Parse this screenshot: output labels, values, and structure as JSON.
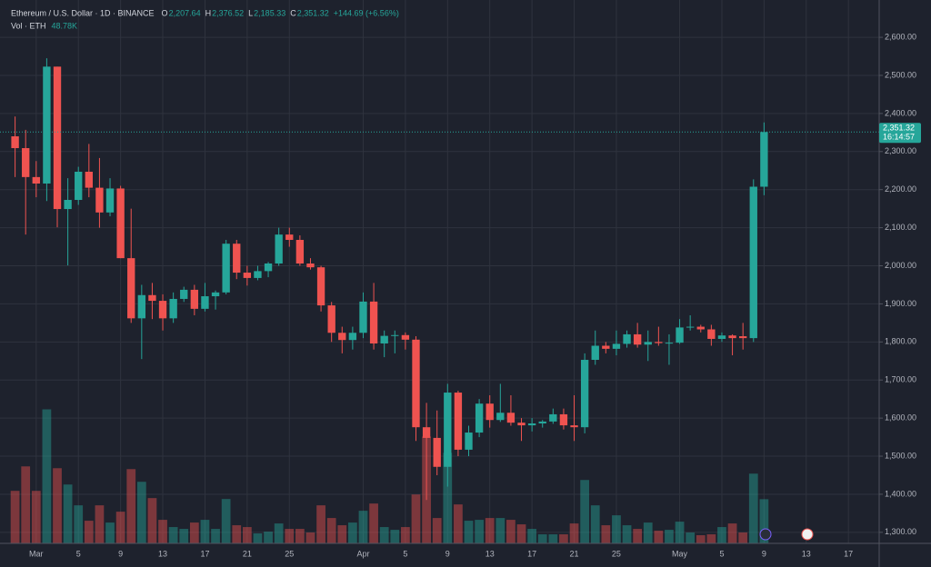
{
  "chart_data": {
    "type": "candlestick",
    "legend": {
      "title": "Ethereum / U.S. Dollar · 1D · BINANCE",
      "items": [
        {
          "key": "O",
          "value": "2,207.64"
        },
        {
          "key": "H",
          "value": "2,376.52"
        },
        {
          "key": "L",
          "value": "2,185.33"
        },
        {
          "key": "C",
          "value": "2,351.32"
        }
      ],
      "change": "+144.69 (+6.56%)",
      "volume_title": "Vol · ETH",
      "volume_value": "48.78K"
    },
    "last_price": {
      "value": 2351.32,
      "label": "2,351.32",
      "countdown": "16:14:57"
    },
    "up_color": "#26a69a",
    "down_color": "#ef5350",
    "grid": true,
    "x": [
      "02-27",
      "02-28",
      "03-01",
      "03-02",
      "03-03",
      "03-04",
      "03-05",
      "03-06",
      "03-07",
      "03-08",
      "03-09",
      "03-10",
      "03-11",
      "03-12",
      "03-13",
      "03-14",
      "03-15",
      "03-16",
      "03-17",
      "03-18",
      "03-19",
      "03-20",
      "03-21",
      "03-22",
      "03-23",
      "03-24",
      "03-25",
      "03-26",
      "03-27",
      "03-28",
      "03-29",
      "03-30",
      "03-31",
      "04-01",
      "04-02",
      "04-03",
      "04-04",
      "04-05",
      "04-06",
      "04-07",
      "04-08",
      "04-09",
      "04-10",
      "04-11",
      "04-12",
      "04-13",
      "04-14",
      "04-15",
      "04-16",
      "04-17",
      "04-18",
      "04-19",
      "04-20",
      "04-21",
      "04-22",
      "04-23",
      "04-24",
      "04-25",
      "04-26",
      "04-27",
      "04-28",
      "04-29",
      "04-30",
      "05-01",
      "05-02",
      "05-03",
      "05-04",
      "05-05",
      "05-06",
      "05-07",
      "05-08",
      "05-09"
    ],
    "open": [
      2340,
      2309,
      2233,
      2216,
      2523,
      2149,
      2173,
      2247,
      2205,
      2140,
      2203,
      2020,
      1862,
      1923,
      1908,
      1862,
      1913,
      1937,
      1887,
      1920,
      1930,
      2058,
      1982,
      1968,
      1986,
      2006,
      2082,
      2068,
      2006,
      1996,
      1896,
      1824,
      1805,
      1824,
      1906,
      1796,
      1816,
      1818,
      1806,
      1576,
      1548,
      1472,
      1667,
      1517,
      1562,
      1638,
      1595,
      1614,
      1588,
      1581,
      1586,
      1591,
      1610,
      1581,
      1576,
      1753,
      1790,
      1782,
      1795,
      1820,
      1793,
      1800,
      1797,
      1798,
      1838,
      1840,
      1833,
      1808,
      1817,
      1815,
      1810,
      2207.64
    ],
    "high": [
      2392,
      2357,
      2275,
      2545,
      2523,
      2230,
      2260,
      2320,
      2283,
      2230,
      2210,
      2150,
      1950,
      1955,
      1925,
      1930,
      1945,
      1950,
      1955,
      1935,
      2068,
      2068,
      2000,
      2000,
      2010,
      2100,
      2100,
      2080,
      2020,
      2000,
      1905,
      1840,
      1840,
      1930,
      1955,
      1830,
      1830,
      1825,
      1815,
      1640,
      1620,
      1690,
      1672,
      1580,
      1650,
      1660,
      1690,
      1660,
      1600,
      1600,
      1595,
      1625,
      1625,
      1660,
      1770,
      1830,
      1800,
      1830,
      1830,
      1850,
      1830,
      1840,
      1820,
      1860,
      1870,
      1845,
      1845,
      1825,
      1820,
      1850,
      2227,
      2376.52
    ],
    "low": [
      2233,
      2082,
      2180,
      2170,
      2101,
      2001,
      2160,
      2180,
      2100,
      2130,
      2020,
      1850,
      1755,
      1860,
      1830,
      1850,
      1905,
      1870,
      1880,
      1885,
      1925,
      1965,
      1948,
      1962,
      1970,
      2000,
      2050,
      2000,
      1990,
      1880,
      1800,
      1770,
      1780,
      1810,
      1780,
      1760,
      1770,
      1780,
      1540,
      1385,
      1450,
      1420,
      1500,
      1500,
      1550,
      1575,
      1590,
      1580,
      1540,
      1565,
      1575,
      1585,
      1570,
      1540,
      1560,
      1740,
      1770,
      1765,
      1785,
      1785,
      1750,
      1790,
      1740,
      1795,
      1830,
      1825,
      1790,
      1800,
      1765,
      1780,
      1800,
      2185.33
    ],
    "close": [
      2309,
      2233,
      2216,
      2523,
      2149,
      2173,
      2247,
      2205,
      2140,
      2203,
      2020,
      1862,
      1923,
      1908,
      1862,
      1913,
      1937,
      1887,
      1920,
      1930,
      2058,
      1982,
      1968,
      1986,
      2006,
      2082,
      2068,
      2006,
      1996,
      1896,
      1824,
      1805,
      1824,
      1906,
      1796,
      1816,
      1818,
      1806,
      1576,
      1548,
      1472,
      1667,
      1517,
      1562,
      1638,
      1595,
      1614,
      1588,
      1581,
      1586,
      1591,
      1610,
      1581,
      1576,
      1753,
      1790,
      1782,
      1795,
      1820,
      1793,
      1800,
      1797,
      1798,
      1838,
      1840,
      1833,
      1808,
      1817,
      1810,
      1810,
      2207.64,
      2351.32
    ],
    "volume": [
      58000,
      85000,
      58000,
      148000,
      83000,
      65000,
      42000,
      25000,
      42000,
      23000,
      35000,
      82000,
      68000,
      50000,
      26000,
      18000,
      16000,
      23000,
      26000,
      16000,
      49000,
      20000,
      18000,
      11000,
      13000,
      22000,
      16000,
      16000,
      12000,
      42000,
      28000,
      20000,
      23000,
      36000,
      44000,
      18000,
      15000,
      18000,
      54000,
      118000,
      28000,
      100000,
      43000,
      25000,
      26000,
      28000,
      28000,
      26000,
      21000,
      16000,
      10000,
      10000,
      10000,
      22000,
      70000,
      42000,
      20000,
      31000,
      20000,
      16000,
      23000,
      14000,
      15000,
      24000,
      12000,
      9000,
      10000,
      18000,
      22000,
      12000,
      77000,
      48780
    ],
    "volume_lim": [
      0,
      600000
    ],
    "xlim": [
      "02-26",
      "05-20"
    ],
    "ylim": [
      1271,
      2698
    ],
    "yticks": [
      {
        "value": 1300,
        "label": "1,300.00"
      },
      {
        "value": 1400,
        "label": "1,400.00"
      },
      {
        "value": 1500,
        "label": "1,500.00"
      },
      {
        "value": 1600,
        "label": "1,600.00"
      },
      {
        "value": 1700,
        "label": "1,700.00"
      },
      {
        "value": 1800,
        "label": "1,800.00"
      },
      {
        "value": 1900,
        "label": "1,900.00"
      },
      {
        "value": 2000,
        "label": "2,000.00"
      },
      {
        "value": 2100,
        "label": "2,100.00"
      },
      {
        "value": 2200,
        "label": "2,200.00"
      },
      {
        "value": 2300,
        "label": "2,300.00"
      },
      {
        "value": 2400,
        "label": "2,400.00"
      },
      {
        "value": 2500,
        "label": "2,500.00"
      },
      {
        "value": 2600,
        "label": "2,600.00"
      }
    ],
    "xticks": [
      {
        "value": "03-01",
        "label": "Mar"
      },
      {
        "value": "03-05",
        "label": "5"
      },
      {
        "value": "03-09",
        "label": "9"
      },
      {
        "value": "03-13",
        "label": "13"
      },
      {
        "value": "03-17",
        "label": "17"
      },
      {
        "value": "03-21",
        "label": "21"
      },
      {
        "value": "03-25",
        "label": "25"
      },
      {
        "value": "04-01",
        "label": "Apr"
      },
      {
        "value": "04-05",
        "label": "5"
      },
      {
        "value": "04-09",
        "label": "9"
      },
      {
        "value": "04-13",
        "label": "13"
      },
      {
        "value": "04-17",
        "label": "17"
      },
      {
        "value": "04-21",
        "label": "21"
      },
      {
        "value": "04-25",
        "label": "25"
      },
      {
        "value": "05-01",
        "label": "May"
      },
      {
        "value": "05-05",
        "label": "5"
      },
      {
        "value": "05-09",
        "label": "9"
      },
      {
        "value": "05-13",
        "label": "13"
      },
      {
        "value": "05-17",
        "label": "17"
      }
    ]
  }
}
